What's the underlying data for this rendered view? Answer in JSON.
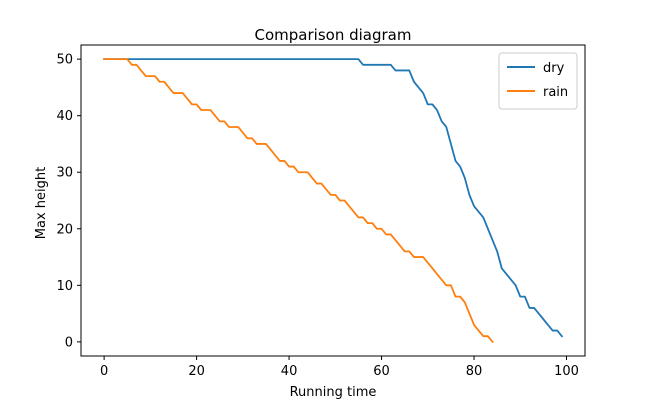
{
  "chart_data": {
    "type": "line",
    "title": "Comparison diagram",
    "xlabel": "Running time",
    "ylabel": "Max height",
    "xlim": [
      -5,
      104
    ],
    "ylim": [
      -2.5,
      52.5
    ],
    "xticks": [
      0,
      20,
      40,
      60,
      80,
      100
    ],
    "yticks": [
      0,
      10,
      20,
      30,
      40,
      50
    ],
    "grid": false,
    "legend_position": "top-right",
    "series": [
      {
        "name": "dry",
        "color": "#1f77b4",
        "x": [
          0,
          5,
          10,
          15,
          20,
          25,
          30,
          35,
          40,
          45,
          50,
          55,
          56,
          58,
          60,
          62,
          63,
          65,
          66,
          67,
          68,
          69,
          70,
          71,
          72,
          73,
          74,
          75,
          76,
          77,
          78,
          79,
          80,
          81,
          82,
          83,
          84,
          85,
          86,
          87,
          88,
          89,
          90,
          91,
          92,
          93,
          94,
          95,
          96,
          97,
          98,
          99
        ],
        "y": [
          50,
          50,
          50,
          50,
          50,
          50,
          50,
          50,
          50,
          50,
          50,
          50,
          49,
          49,
          49,
          49,
          48,
          48,
          48,
          46,
          45,
          44,
          42,
          42,
          41,
          39,
          38,
          35,
          32,
          31,
          29,
          26,
          24,
          23,
          22,
          20,
          18,
          16,
          13,
          12,
          11,
          10,
          8,
          8,
          6,
          6,
          5,
          4,
          3,
          2,
          2,
          1
        ]
      },
      {
        "name": "rain",
        "color": "#ff7f0e",
        "x": [
          0,
          5,
          6,
          7,
          8,
          9,
          10,
          11,
          12,
          13,
          14,
          15,
          16,
          17,
          18,
          19,
          20,
          21,
          22,
          23,
          24,
          25,
          26,
          27,
          28,
          29,
          30,
          31,
          32,
          33,
          34,
          35,
          36,
          37,
          38,
          39,
          40,
          41,
          42,
          43,
          44,
          45,
          46,
          47,
          48,
          49,
          50,
          51,
          52,
          53,
          54,
          55,
          56,
          57,
          58,
          59,
          60,
          61,
          62,
          63,
          64,
          65,
          66,
          67,
          68,
          69,
          70,
          71,
          72,
          73,
          74,
          75,
          76,
          77,
          78,
          79,
          80,
          81,
          82,
          83,
          84
        ],
        "y": [
          50,
          50,
          49,
          49,
          48,
          47,
          47,
          47,
          46,
          46,
          45,
          44,
          44,
          44,
          43,
          42,
          42,
          41,
          41,
          41,
          40,
          39,
          39,
          38,
          38,
          38,
          37,
          36,
          36,
          35,
          35,
          35,
          34,
          33,
          32,
          32,
          31,
          31,
          30,
          30,
          30,
          29,
          28,
          28,
          27,
          26,
          26,
          25,
          25,
          24,
          23,
          22,
          22,
          21,
          21,
          20,
          20,
          19,
          19,
          18,
          17,
          16,
          16,
          15,
          15,
          15,
          14,
          13,
          12,
          11,
          10,
          10,
          8,
          8,
          7,
          5,
          3,
          2,
          1,
          1,
          0
        ]
      }
    ]
  }
}
